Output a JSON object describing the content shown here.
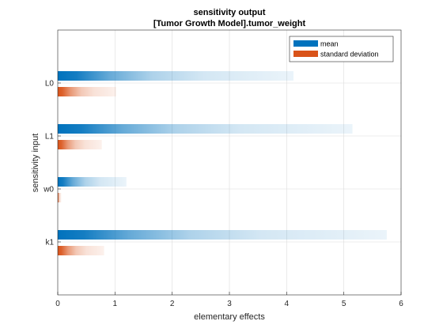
{
  "chart_data": {
    "type": "bar",
    "orientation": "horizontal",
    "title": "sensitivity output",
    "subtitle": "[Tumor Growth Model].tumor_weight",
    "xlabel": "elementary effects",
    "ylabel": "sensitivity input",
    "xlim": [
      0,
      6
    ],
    "x_ticks": [
      "0",
      "1",
      "2",
      "3",
      "4",
      "5",
      "6"
    ],
    "categories": [
      "L0",
      "L1",
      "w0",
      "k1"
    ],
    "grid": true,
    "legend_position": "top-right",
    "series": [
      {
        "name": "mean",
        "color": "#0072BD",
        "values": [
          4.12,
          5.15,
          1.2,
          5.75
        ]
      },
      {
        "name": "standard deviation",
        "color": "#D95319",
        "values": [
          1.02,
          0.77,
          0.06,
          0.81
        ]
      }
    ]
  }
}
